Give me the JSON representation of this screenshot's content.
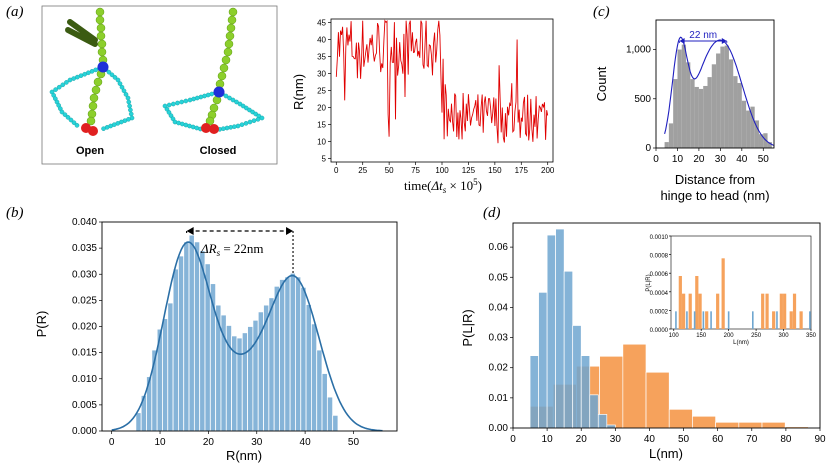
{
  "panels": {
    "a": "(a)",
    "b": "(b)",
    "c": "(c)",
    "d": "(d)"
  },
  "molecule": {
    "open_label": "Open",
    "closed_label": "Closed"
  },
  "colors": {
    "trace_red": "#e00000",
    "hist_blue": "#86b4d8",
    "kde_blue": "#2b6fa6",
    "hist_gray": "#a0a0a0",
    "fit_blue": "#1f1fbf",
    "bar_blue": "#6fa6d0",
    "bar_orange": "#f6a25c"
  },
  "chart_data": [
    {
      "id": "a-trace",
      "type": "line",
      "title": "",
      "xlabel": "time(Δt_s × 10^5)",
      "xlabel_prefix": "time(",
      "xlabel_var": "Δt",
      "xlabel_sub": "s",
      "xlabel_times": " × 10",
      "xlabel_exp": "5",
      "xlabel_close": ")",
      "ylabel": "R(nm)",
      "xlim": [
        -5,
        205
      ],
      "ylim": [
        4,
        46
      ],
      "xticks": [
        0,
        25,
        50,
        75,
        100,
        125,
        150,
        175,
        200
      ],
      "yticks": [
        5,
        10,
        15,
        20,
        25,
        30,
        35,
        40,
        45
      ],
      "early_mean": 38,
      "late_mean": 17,
      "switch_at": 100
    },
    {
      "id": "c-hist",
      "type": "bar",
      "title": "",
      "annotation": "22 nm",
      "xlabel": "Distance from hinge to head (nm)",
      "xlabel_line1": "Distance from",
      "xlabel_line2": "hinge to head (nm)",
      "ylabel": "Count",
      "xlim": [
        0,
        55
      ],
      "ylim": [
        0,
        1300
      ],
      "xticks": [
        0,
        10,
        20,
        30,
        40,
        50
      ],
      "yticks": [
        0,
        500,
        1000
      ],
      "ytick_labels": [
        "0",
        "500",
        "1,000"
      ],
      "bin_start": 4,
      "bin_width": 2,
      "values": [
        60,
        250,
        700,
        1000,
        1050,
        870,
        700,
        620,
        600,
        630,
        720,
        850,
        960,
        1030,
        1040,
        900,
        730,
        660,
        480,
        380,
        420,
        280,
        140,
        150,
        60
      ],
      "peak_left": 11,
      "peak_right": 33
    },
    {
      "id": "b-hist",
      "type": "bar",
      "title": "",
      "annotation": "ΔR_s = 22nm",
      "annotation_delta": "ΔR",
      "annotation_sub": "s",
      "annotation_rest": " = 22nm",
      "xlabel": "R(nm)",
      "ylabel": "P(R)",
      "xlim": [
        -2,
        59
      ],
      "ylim": [
        0,
        0.04
      ],
      "xticks": [
        0,
        10,
        20,
        30,
        40,
        50
      ],
      "yticks": [
        0,
        0.005,
        0.01,
        0.015,
        0.02,
        0.025,
        0.03,
        0.035,
        0.04
      ],
      "ytick_labels": [
        "0.000",
        "0.005",
        "0.010",
        "0.015",
        "0.020",
        "0.025",
        "0.030",
        "0.035",
        "0.040"
      ],
      "bin_start": 5,
      "bin_width": 1.1,
      "values": [
        0.0035,
        0.0068,
        0.0104,
        0.0155,
        0.0195,
        0.0215,
        0.0245,
        0.031,
        0.0335,
        0.0362,
        0.0375,
        0.0362,
        0.0345,
        0.032,
        0.0282,
        0.0241,
        0.0222,
        0.0202,
        0.0182,
        0.0178,
        0.0188,
        0.02,
        0.0212,
        0.0228,
        0.0241,
        0.0255,
        0.0277,
        0.029,
        0.0295,
        0.0302,
        0.0295,
        0.0275,
        0.0242,
        0.0205,
        0.0155,
        0.011,
        0.0065,
        0.003
      ],
      "kde_peak_left": 15.5,
      "kde_peak_right": 37.5
    },
    {
      "id": "d-hist",
      "type": "bar",
      "title": "",
      "xlabel": "L(nm)",
      "ylabel": "P(L|R)",
      "xlim": [
        0,
        90
      ],
      "ylim": [
        0,
        0.068
      ],
      "xticks": [
        0,
        10,
        20,
        30,
        40,
        50,
        60,
        70,
        80,
        90
      ],
      "yticks": [
        0,
        0.01,
        0.02,
        0.03,
        0.04,
        0.05,
        0.06
      ],
      "ytick_labels": [
        "0.00",
        "0.01",
        "0.02",
        "0.03",
        "0.04",
        "0.05",
        "0.06"
      ],
      "series": [
        {
          "name": "blue",
          "edges": [
            5,
            7.5,
            10,
            12.5,
            15,
            17.5,
            20,
            22.5,
            25,
            27.5,
            30
          ],
          "values": [
            0.024,
            0.045,
            0.064,
            0.066,
            0.052,
            0.034,
            0.024,
            0.011,
            0.0045,
            0.001
          ]
        },
        {
          "name": "orange",
          "edges": [
            5,
            11.8,
            18.6,
            25.4,
            32.2,
            39,
            45.8,
            52.6,
            59.4,
            66.2,
            73,
            79.8,
            86.6
          ],
          "values": [
            0.0072,
            0.0145,
            0.0205,
            0.0238,
            0.0278,
            0.0185,
            0.0062,
            0.0039,
            0.0019,
            0.0019,
            0.0019,
            0.0004
          ]
        }
      ],
      "inset": {
        "xlabel": "L(nm)",
        "ylabel": "P(L|R)",
        "xlim": [
          95,
          350
        ],
        "ylim": [
          0,
          0.001
        ],
        "xticks": [
          100,
          150,
          200,
          250,
          300,
          350
        ],
        "yticks": [
          0,
          0.0002,
          0.0004,
          0.0006,
          0.0008,
          0.001
        ],
        "ytick_labels": [
          "0.0000",
          "0.0002",
          "0.0004",
          "0.0006",
          "0.0008",
          "0.0010"
        ],
        "orange_bars": [
          {
            "x": 112,
            "value": 0.00057
          },
          {
            "x": 118,
            "value": 0.00038
          },
          {
            "x": 130,
            "value": 0.00038
          },
          {
            "x": 142,
            "value": 0.00057
          },
          {
            "x": 148,
            "value": 0.00038
          },
          {
            "x": 160,
            "value": 0.00019
          },
          {
            "x": 180,
            "value": 0.00038
          },
          {
            "x": 190,
            "value": 0.00076
          },
          {
            "x": 262,
            "value": 0.00038
          },
          {
            "x": 270,
            "value": 0.00038
          },
          {
            "x": 282,
            "value": 0.00019
          },
          {
            "x": 296,
            "value": 0.00038
          },
          {
            "x": 302,
            "value": 0.00038
          },
          {
            "x": 314,
            "value": 0.00019
          },
          {
            "x": 320,
            "value": 0.00038
          },
          {
            "x": 332,
            "value": 0.00019
          }
        ],
        "blue_bars": [
          {
            "x": 104,
            "value": 0.00019
          },
          {
            "x": 124,
            "value": 0.00019
          },
          {
            "x": 138,
            "value": 0.00019
          },
          {
            "x": 154,
            "value": 0.00019
          },
          {
            "x": 168,
            "value": 0.00019
          },
          {
            "x": 200,
            "value": 0.00019
          },
          {
            "x": 244,
            "value": 0.00019
          },
          {
            "x": 288,
            "value": 0.00019
          },
          {
            "x": 348,
            "value": 0.00019
          }
        ]
      }
    }
  ]
}
